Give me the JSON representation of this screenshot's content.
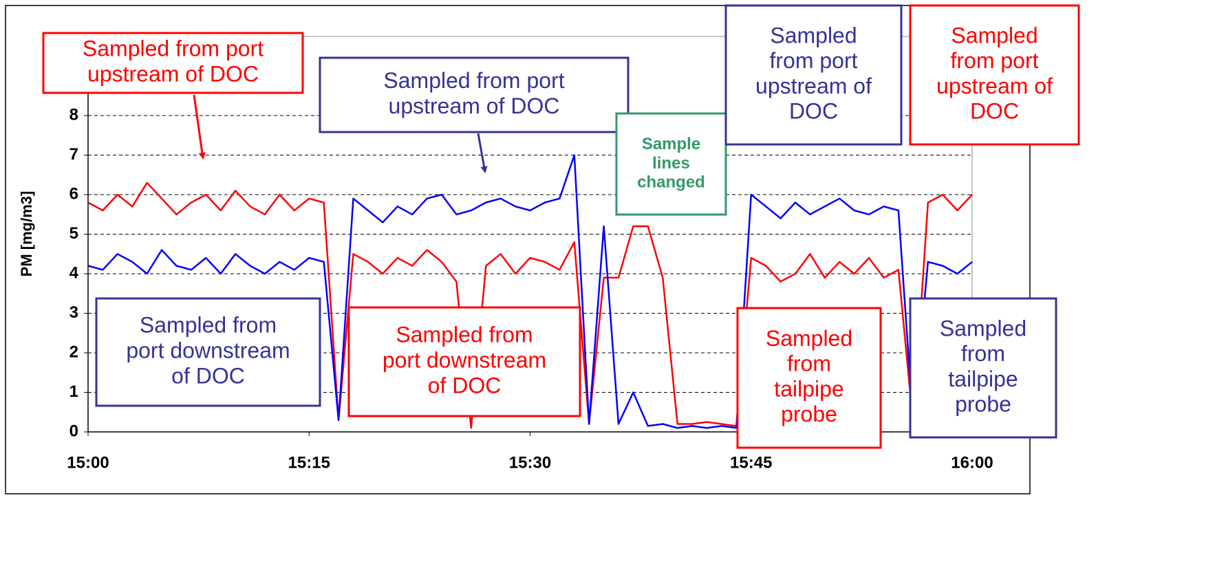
{
  "chart_data": {
    "type": "line",
    "y_label": "PM [mg/m3]",
    "x": [
      "15:00",
      "15:01",
      "15:02",
      "15:03",
      "15:04",
      "15:05",
      "15:06",
      "15:07",
      "15:08",
      "15:09",
      "15:10",
      "15:11",
      "15:12",
      "15:13",
      "15:14",
      "15:15",
      "15:16",
      "15:17",
      "15:18",
      "15:19",
      "15:20",
      "15:21",
      "15:22",
      "15:23",
      "15:24",
      "15:25",
      "15:26",
      "15:27",
      "15:28",
      "15:29",
      "15:30",
      "15:31",
      "15:32",
      "15:33",
      "15:34",
      "15:35",
      "15:36",
      "15:37",
      "15:38",
      "15:39",
      "15:40",
      "15:41",
      "15:42",
      "15:43",
      "15:44",
      "15:45",
      "15:46",
      "15:47",
      "15:48",
      "15:49",
      "15:50",
      "15:51",
      "15:52",
      "15:53",
      "15:54",
      "15:55",
      "15:56",
      "15:57",
      "15:58",
      "15:59",
      "16:00"
    ],
    "series": [
      {
        "color": "#ff0000",
        "values": [
          5.8,
          5.6,
          6.0,
          5.7,
          6.3,
          5.9,
          5.5,
          5.8,
          6.0,
          5.6,
          6.1,
          5.7,
          5.5,
          6.0,
          5.6,
          5.9,
          5.8,
          0.3,
          4.5,
          4.3,
          4.0,
          4.4,
          4.2,
          4.6,
          4.3,
          3.8,
          0.1,
          4.2,
          4.5,
          4.0,
          4.4,
          4.3,
          4.1,
          4.8,
          0.2,
          3.9,
          3.9,
          5.2,
          5.2,
          3.9,
          0.2,
          0.2,
          0.25,
          0.2,
          0.15,
          4.4,
          4.2,
          3.8,
          4.0,
          4.5,
          3.9,
          4.3,
          4.0,
          4.4,
          3.9,
          4.1,
          0.2,
          5.8,
          6.0,
          5.6,
          6.0
        ]
      },
      {
        "color": "#0000ff",
        "values": [
          4.2,
          4.1,
          4.5,
          4.3,
          4.0,
          4.6,
          4.2,
          4.1,
          4.4,
          4.0,
          4.5,
          4.2,
          4.0,
          4.3,
          4.1,
          4.4,
          4.3,
          0.3,
          5.9,
          5.6,
          5.3,
          5.7,
          5.5,
          5.9,
          6.0,
          5.5,
          5.6,
          5.8,
          5.9,
          5.7,
          5.6,
          5.8,
          5.9,
          7.0,
          0.2,
          5.2,
          0.2,
          1.0,
          0.15,
          0.2,
          0.1,
          0.15,
          0.1,
          0.15,
          0.1,
          6.0,
          5.7,
          5.4,
          5.8,
          5.5,
          5.7,
          5.9,
          5.6,
          5.5,
          5.7,
          5.6,
          0.2,
          4.3,
          4.2,
          4.0,
          4.3
        ]
      }
    ],
    "xlim": [
      "15:00",
      "16:00"
    ],
    "xticks": [
      "15:00",
      "15:15",
      "15:30",
      "15:45",
      "16:00"
    ],
    "ylim": [
      0,
      10
    ],
    "yticks": [
      0,
      1,
      2,
      3,
      4,
      5,
      6,
      7,
      8
    ],
    "grid": true,
    "annotations": [
      {
        "lines": [
          "Sampled from port",
          "upstream of DOC"
        ],
        "color": "#ff0000"
      },
      {
        "lines": [
          "Sampled from port",
          "upstream of DOC"
        ],
        "color": "#333399"
      },
      {
        "lines": [
          "Sample",
          "lines",
          "changed"
        ],
        "color": "#339966"
      },
      {
        "lines": [
          "Sampled",
          "from port",
          "upstream of",
          "DOC"
        ],
        "color": "#333399"
      },
      {
        "lines": [
          "Sampled",
          "from port",
          "upstream of",
          "DOC"
        ],
        "color": "#ff0000"
      },
      {
        "lines": [
          "Sampled from",
          "port downstream",
          "of DOC"
        ],
        "color": "#333399"
      },
      {
        "lines": [
          "Sampled from",
          "port downstream",
          "of DOC"
        ],
        "color": "#ff0000"
      },
      {
        "lines": [
          "Sampled",
          "from",
          "tailpipe",
          "probe"
        ],
        "color": "#ff0000"
      },
      {
        "lines": [
          "Sampled",
          "from",
          "tailpipe",
          "probe"
        ],
        "color": "#333399"
      }
    ]
  }
}
